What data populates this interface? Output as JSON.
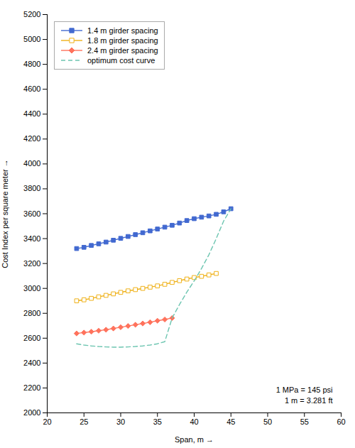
{
  "chart_data": {
    "type": "line",
    "xlabel": "Span, m",
    "ylabel": "Cost Index per square meter",
    "xlim": [
      20,
      60
    ],
    "ylim": [
      2000,
      5200
    ],
    "xticks": [
      20,
      25,
      30,
      35,
      40,
      45,
      50,
      55,
      60
    ],
    "yticks": [
      2000,
      2200,
      2400,
      2600,
      2800,
      3000,
      3200,
      3400,
      3600,
      3800,
      4000,
      4200,
      4400,
      4600,
      4800,
      5000,
      5200
    ],
    "grid": false,
    "legend": "upper left",
    "annotations": [
      "1 MPa = 145 psi",
      "1 m = 3.281 ft"
    ],
    "series": [
      {
        "name": "1.4 m girder spacing",
        "marker": "square",
        "line_style": "solid",
        "x": [
          24,
          25,
          26,
          27,
          28,
          29,
          30,
          31,
          32,
          33,
          34,
          35,
          36,
          37,
          38,
          39,
          40,
          41,
          42,
          43,
          44,
          45
        ],
        "values": [
          3320,
          3330,
          3345,
          3358,
          3372,
          3387,
          3402,
          3417,
          3432,
          3447,
          3462,
          3477,
          3492,
          3507,
          3525,
          3545,
          3560,
          3572,
          3582,
          3595,
          3615,
          3640
        ]
      },
      {
        "name": "1.8 m girder spacing",
        "marker": "open-square",
        "line_style": "solid",
        "x": [
          24,
          25,
          26,
          27,
          28,
          29,
          30,
          31,
          32,
          33,
          34,
          35,
          36,
          37,
          38,
          39,
          40,
          41,
          42,
          43
        ],
        "values": [
          2900,
          2908,
          2920,
          2932,
          2944,
          2956,
          2968,
          2980,
          2990,
          3000,
          3010,
          3020,
          3033,
          3048,
          3062,
          3075,
          3087,
          3097,
          3108,
          3120
        ]
      },
      {
        "name": "2.4 m girder spacing",
        "marker": "diamond",
        "line_style": "solid",
        "x": [
          24,
          25,
          26,
          27,
          28,
          29,
          30,
          31,
          32,
          33,
          34,
          35,
          36,
          37
        ],
        "values": [
          2638,
          2645,
          2652,
          2660,
          2668,
          2678,
          2688,
          2698,
          2708,
          2718,
          2728,
          2740,
          2750,
          2762
        ]
      },
      {
        "name": "optimum cost curve",
        "marker": "none",
        "line_style": "dashed",
        "x": [
          24,
          25,
          26,
          27,
          28,
          29,
          30,
          31,
          32,
          33,
          34,
          35,
          36,
          37,
          38,
          39,
          40,
          41,
          42,
          43,
          44,
          45
        ],
        "values": [
          2555,
          2545,
          2538,
          2533,
          2530,
          2528,
          2528,
          2530,
          2533,
          2538,
          2545,
          2555,
          2572,
          2762,
          2870,
          2970,
          3060,
          3160,
          3270,
          3400,
          3540,
          3640
        ]
      }
    ]
  }
}
